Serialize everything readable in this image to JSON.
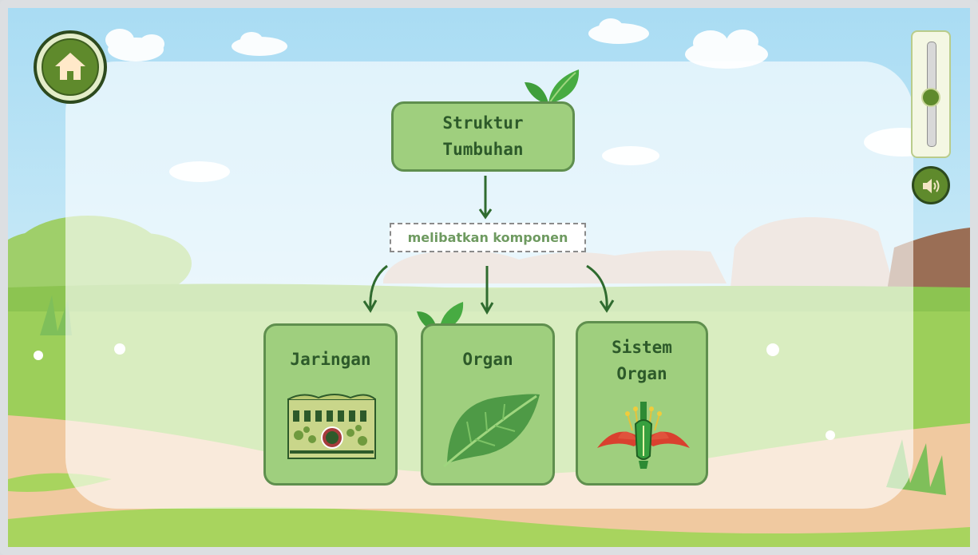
{
  "concept_map": {
    "root": "Struktur\nTumbuhan",
    "connector": "melibatkan komponen",
    "children": [
      {
        "label": "Jaringan",
        "image": "plant-tissue-illustration"
      },
      {
        "label": "Organ",
        "image": "leaf-illustration"
      },
      {
        "label": "Sistem\nOrgan",
        "image": "flower-illustration"
      }
    ]
  },
  "controls": {
    "home_icon": "home-icon",
    "volume_level": 0.47,
    "sound_icon": "speaker-icon"
  },
  "colors": {
    "box_fill": "#9fcf7e",
    "box_border": "#5f8f4e",
    "text_dark_green": "#2d5a2a",
    "arrow_green": "#2f6b2f",
    "sky": "#bfe6f7",
    "grass": "#9ccf5a"
  }
}
